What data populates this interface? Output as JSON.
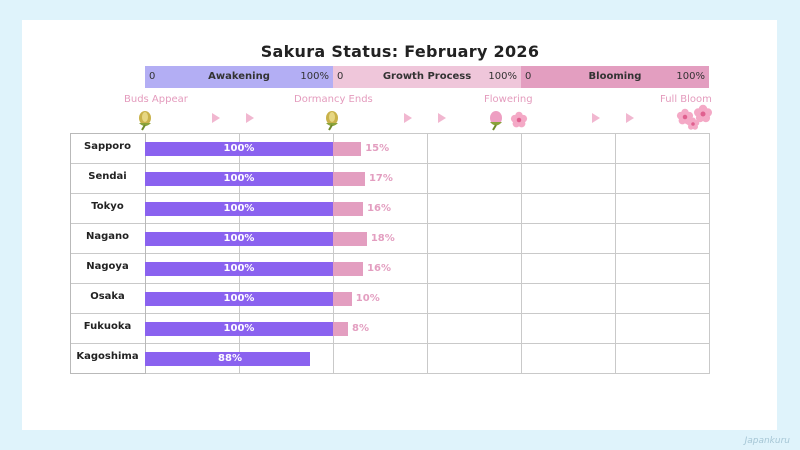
{
  "chart_data": {
    "type": "bar",
    "title": "Sakura Status: February 2026",
    "phases": [
      {
        "name": "Awakening",
        "min_label": "0",
        "max_label": "100%",
        "color": "#b3aef4"
      },
      {
        "name": "Growth Process",
        "min_label": "0",
        "max_label": "100%",
        "color": "#efc6da"
      },
      {
        "name": "Blooming",
        "min_label": "0",
        "max_label": "100%",
        "color": "#e39ec0"
      }
    ],
    "stages": [
      "Buds Appear",
      "Dormancy Ends",
      "Flowering",
      "Full Bloom"
    ],
    "categories": [
      "Sapporo",
      "Sendai",
      "Tokyo",
      "Nagano",
      "Nagoya",
      "Osaka",
      "Fukuoka",
      "Kagoshima"
    ],
    "series": [
      {
        "values": [
          100,
          100,
          100,
          100,
          100,
          100,
          100,
          88
        ],
        "labels": [
          "100%",
          "100%",
          "100%",
          "100%",
          "100%",
          "100%",
          "100%",
          "88%"
        ],
        "color": "#8a62ef"
      },
      {
        "values": [
          15,
          17,
          16,
          18,
          16,
          10,
          8,
          0
        ],
        "labels": [
          "15%",
          "17%",
          "16%",
          "18%",
          "16%",
          "10%",
          "8%",
          ""
        ],
        "color": "#e39ec0"
      }
    ],
    "ylim": [
      0,
      100
    ]
  },
  "footer": {
    "logo_text": "Japankuru"
  }
}
